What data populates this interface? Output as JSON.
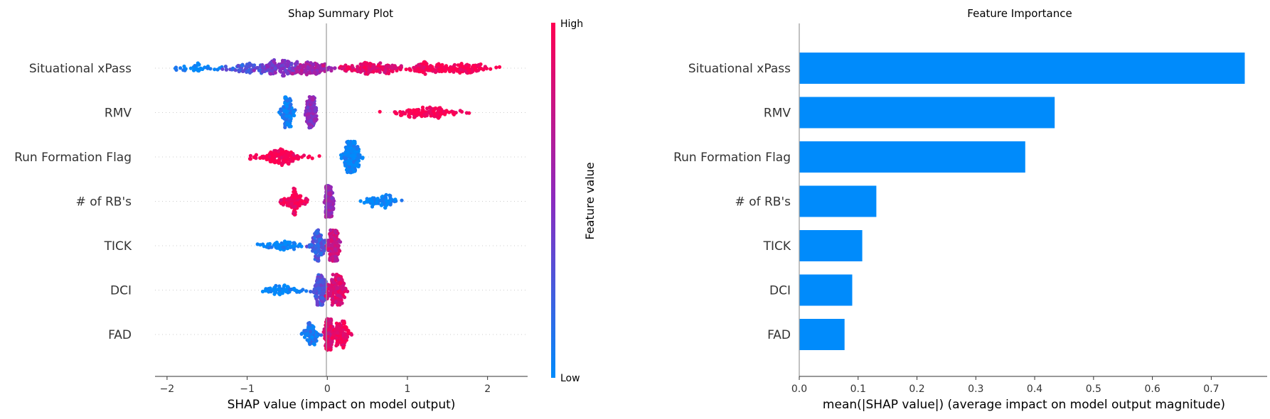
{
  "chart_data": [
    {
      "type": "scatter",
      "title": "Shap Summary Plot",
      "xlabel": "SHAP value (impact on model output)",
      "ylabel": "",
      "xlim": [
        -2.15,
        2.5
      ],
      "xticks": [
        -2,
        -1,
        0,
        1,
        2
      ],
      "xtick_labels": [
        "−2",
        "−1",
        "0",
        "1",
        "2"
      ],
      "grid": false,
      "features": [
        "Situational xPass",
        "RMV",
        "Run Formation Flag",
        "# of RB's",
        "TICK",
        "DCI",
        "FAD"
      ],
      "colorbar": {
        "label": "Feature value",
        "high_label": "High",
        "low_label": "Low",
        "low_color": "#008bfb",
        "mid_color": "#8b2bbf",
        "high_color": "#ff0051"
      },
      "distributions": [
        {
          "feature": "Situational xPass",
          "min": -1.95,
          "max": 2.28,
          "clusters": [
            {
              "center": -1.55,
              "spread": 0.35,
              "weight": 0.15,
              "value": 0.03
            },
            {
              "center": -0.95,
              "spread": 0.3,
              "weight": 0.3,
              "value": 0.25
            },
            {
              "center": -0.55,
              "spread": 0.25,
              "weight": 0.55,
              "value": 0.45
            },
            {
              "center": -0.15,
              "spread": 0.2,
              "weight": 0.4,
              "value": 0.62
            },
            {
              "center": 0.55,
              "spread": 0.3,
              "weight": 0.55,
              "value": 0.88
            },
            {
              "center": 1.25,
              "spread": 0.3,
              "weight": 0.4,
              "value": 0.96
            },
            {
              "center": 1.75,
              "spread": 0.25,
              "weight": 0.35,
              "value": 1.0
            }
          ]
        },
        {
          "feature": "RMV",
          "min": -0.6,
          "max": 1.9,
          "clusters": [
            {
              "center": -0.5,
              "spread": 0.07,
              "weight": 0.45,
              "value": 0.05
            },
            {
              "center": -0.2,
              "spread": 0.05,
              "weight": 0.8,
              "value": 0.5
            },
            {
              "center": 1.25,
              "spread": 0.33,
              "weight": 0.5,
              "value": 1.0
            }
          ]
        },
        {
          "feature": "Run Formation Flag",
          "min": -1.3,
          "max": 0.55,
          "clusters": [
            {
              "center": -0.6,
              "spread": 0.25,
              "weight": 0.6,
              "value": 1.0
            },
            {
              "center": 0.3,
              "spread": 0.08,
              "weight": 0.9,
              "value": 0.0
            }
          ]
        },
        {
          "feature": "# of RB's",
          "min": -0.68,
          "max": 1.17,
          "clusters": [
            {
              "center": -0.4,
              "spread": 0.12,
              "weight": 0.4,
              "value": 0.95
            },
            {
              "center": 0.02,
              "spread": 0.04,
              "weight": 0.9,
              "value": 0.55
            },
            {
              "center": 0.7,
              "spread": 0.22,
              "weight": 0.3,
              "value": 0.0
            }
          ]
        },
        {
          "feature": "TICK",
          "min": -0.87,
          "max": 0.23,
          "clusters": [
            {
              "center": -0.55,
              "spread": 0.18,
              "weight": 0.25,
              "value": 0.0
            },
            {
              "center": -0.12,
              "spread": 0.08,
              "weight": 0.55,
              "value": 0.25
            },
            {
              "center": 0.08,
              "spread": 0.06,
              "weight": 0.8,
              "value": 0.75
            }
          ]
        },
        {
          "feature": "DCI",
          "min": -1.0,
          "max": 0.37,
          "clusters": [
            {
              "center": -0.55,
              "spread": 0.22,
              "weight": 0.25,
              "value": 0.0
            },
            {
              "center": -0.08,
              "spread": 0.07,
              "weight": 0.55,
              "value": 0.3
            },
            {
              "center": 0.12,
              "spread": 0.09,
              "weight": 0.7,
              "value": 0.85
            }
          ]
        },
        {
          "feature": "FAD",
          "min": -0.38,
          "max": 0.31,
          "clusters": [
            {
              "center": -0.2,
              "spread": 0.09,
              "weight": 0.35,
              "value": 0.1
            },
            {
              "center": 0.02,
              "spread": 0.04,
              "weight": 0.95,
              "value": 0.85
            },
            {
              "center": 0.17,
              "spread": 0.07,
              "weight": 0.45,
              "value": 0.95
            }
          ]
        }
      ]
    },
    {
      "type": "bar",
      "orientation": "horizontal",
      "title": "Feature Importance",
      "xlabel": "mean(|SHAP value|) (average impact on model output magnitude)",
      "ylabel": "",
      "categories": [
        "Situational xPass",
        "RMV",
        "Run Formation Flag",
        "# of RB's",
        "TICK",
        "DCI",
        "FAD"
      ],
      "values": [
        0.757,
        0.434,
        0.384,
        0.131,
        0.107,
        0.09,
        0.077
      ],
      "xlim": [
        0,
        0.795
      ],
      "xticks": [
        0.0,
        0.1,
        0.2,
        0.3,
        0.4,
        0.5,
        0.6,
        0.7
      ],
      "xtick_labels": [
        "0.0",
        "0.1",
        "0.2",
        "0.3",
        "0.4",
        "0.5",
        "0.6",
        "0.7"
      ],
      "bar_color": "#008bfb",
      "grid": false
    }
  ]
}
